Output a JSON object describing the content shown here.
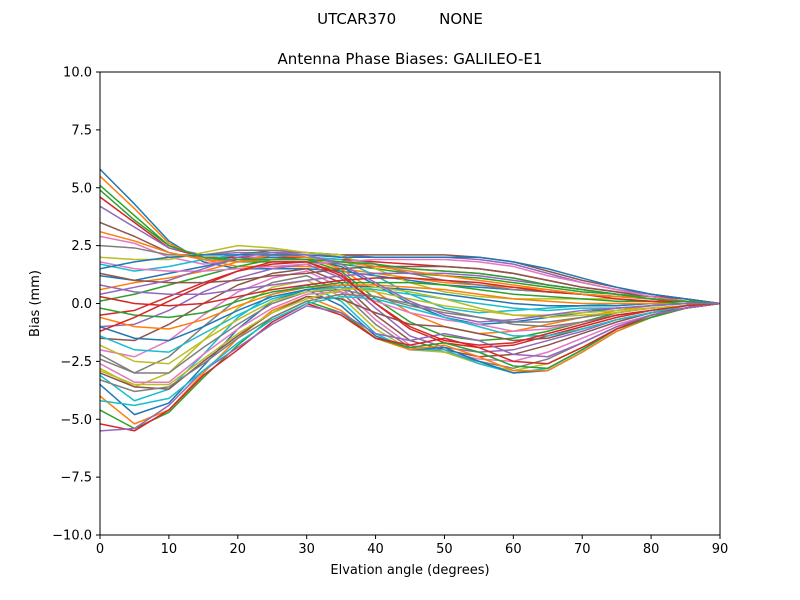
{
  "chart_data": {
    "type": "line",
    "suptitle": "UTCAR370         NONE",
    "title": "Antenna Phase Biases: GALILEO-E1",
    "xlabel": "Elvation angle (degrees)",
    "ylabel": "Bias (mm)",
    "xlim": [
      0,
      90
    ],
    "ylim": [
      -10,
      10
    ],
    "xticks": [
      "0",
      "10",
      "20",
      "30",
      "40",
      "50",
      "60",
      "70",
      "80",
      "90"
    ],
    "yticks": [
      "10.0",
      "7.5",
      "5.0",
      "2.5",
      "0.0",
      "−2.5",
      "−5.0",
      "−7.5",
      "−10.0"
    ],
    "grid": false,
    "legend": "none",
    "colors": [
      "#1f77b4",
      "#ff7f0e",
      "#2ca02c",
      "#d62728",
      "#9467bd",
      "#8c564b",
      "#e377c2",
      "#7f7f7f",
      "#bcbd22",
      "#17becf"
    ],
    "x": [
      0,
      5,
      10,
      15,
      20,
      25,
      30,
      35,
      40,
      45,
      50,
      55,
      60,
      65,
      70,
      75,
      80,
      85,
      90
    ],
    "series": [
      {
        "values": [
          5.8,
          4.3,
          2.7,
          1.8,
          1.5,
          1.5,
          1.5,
          1.4,
          1.2,
          1.0,
          0.8,
          0.7,
          0.6,
          0.5,
          0.4,
          0.3,
          0.2,
          0.1,
          0.0
        ]
      },
      {
        "values": [
          5.5,
          4.1,
          2.6,
          1.9,
          1.6,
          1.6,
          1.6,
          1.5,
          1.3,
          1.1,
          0.9,
          0.8,
          0.7,
          0.6,
          0.4,
          0.3,
          0.2,
          0.1,
          0.0
        ]
      },
      {
        "values": [
          5.1,
          3.8,
          2.5,
          2.0,
          1.8,
          1.8,
          1.8,
          1.7,
          1.5,
          1.3,
          1.2,
          1.1,
          0.9,
          0.7,
          0.5,
          0.4,
          0.3,
          0.1,
          0.0
        ]
      },
      {
        "values": [
          4.6,
          3.5,
          2.4,
          2.0,
          2.0,
          2.0,
          2.0,
          1.9,
          1.8,
          1.7,
          1.6,
          1.5,
          1.3,
          1.0,
          0.7,
          0.5,
          0.3,
          0.2,
          0.0
        ]
      },
      {
        "values": [
          4.2,
          3.3,
          2.4,
          2.1,
          2.2,
          2.2,
          2.2,
          2.1,
          2.0,
          2.0,
          2.0,
          1.9,
          1.7,
          1.3,
          0.9,
          0.6,
          0.4,
          0.2,
          0.0
        ]
      },
      {
        "values": [
          3.5,
          2.9,
          2.2,
          1.9,
          2.1,
          2.3,
          2.2,
          2.1,
          2.1,
          2.1,
          2.1,
          2.0,
          1.8,
          1.4,
          1.0,
          0.7,
          0.4,
          0.2,
          0.0
        ]
      },
      {
        "values": [
          2.9,
          2.6,
          2.0,
          1.7,
          1.9,
          2.1,
          2.0,
          1.8,
          1.6,
          1.5,
          1.4,
          1.3,
          1.1,
          0.8,
          0.6,
          0.4,
          0.2,
          0.1,
          0.0
        ]
      },
      {
        "values": [
          2.5,
          2.4,
          2.1,
          2.1,
          2.3,
          2.3,
          2.2,
          2.0,
          1.7,
          1.3,
          1.0,
          0.8,
          0.6,
          0.5,
          0.4,
          0.3,
          0.2,
          0.1,
          0.0
        ]
      },
      {
        "values": [
          2.0,
          1.9,
          1.9,
          2.2,
          2.5,
          2.4,
          2.2,
          2.1,
          1.5,
          0.9,
          0.5,
          0.3,
          0.2,
          0.2,
          0.2,
          0.2,
          0.1,
          0.1,
          0.0
        ]
      },
      {
        "values": [
          1.7,
          1.4,
          1.6,
          1.9,
          2.1,
          2.2,
          2.0,
          1.9,
          1.2,
          0.4,
          -0.2,
          -0.4,
          -0.3,
          -0.2,
          -0.1,
          0.0,
          0.0,
          0.0,
          0.0
        ]
      },
      {
        "values": [
          1.2,
          1.0,
          1.3,
          1.6,
          1.9,
          2.0,
          1.9,
          1.6,
          0.8,
          0.0,
          -0.6,
          -0.9,
          -0.8,
          -0.6,
          -0.4,
          -0.2,
          -0.1,
          0.0,
          0.0
        ]
      },
      {
        "values": [
          0.6,
          0.9,
          1.1,
          1.4,
          1.8,
          2.1,
          2.0,
          1.5,
          0.5,
          -0.4,
          -1.0,
          -1.3,
          -1.2,
          -0.9,
          -0.6,
          -0.3,
          -0.1,
          0.0,
          0.0
        ]
      },
      {
        "values": [
          0.1,
          0.4,
          0.8,
          1.2,
          1.6,
          1.9,
          1.9,
          1.4,
          0.2,
          -0.8,
          -1.4,
          -1.6,
          -1.5,
          -1.2,
          -0.8,
          -0.4,
          -0.2,
          -0.1,
          0.0
        ]
      },
      {
        "values": [
          -0.5,
          -0.3,
          0.3,
          0.9,
          1.4,
          1.7,
          1.8,
          1.3,
          0.0,
          -1.1,
          -1.7,
          -1.9,
          -1.8,
          -1.4,
          -1.0,
          -0.6,
          -0.3,
          -0.1,
          0.0
        ]
      },
      {
        "values": [
          -1.0,
          -0.9,
          -0.3,
          0.5,
          1.1,
          1.5,
          1.7,
          1.1,
          -0.2,
          -1.4,
          -1.9,
          -2.1,
          -2.0,
          -1.6,
          -1.2,
          -0.7,
          -0.4,
          -0.1,
          0.0
        ]
      },
      {
        "values": [
          -1.5,
          -1.6,
          -0.9,
          0.0,
          0.8,
          1.3,
          1.5,
          0.9,
          -0.5,
          -1.6,
          -2.0,
          -2.3,
          -2.2,
          -1.8,
          -1.3,
          -0.8,
          -0.4,
          -0.2,
          0.0
        ]
      },
      {
        "values": [
          -2.0,
          -2.3,
          -1.6,
          -0.5,
          0.5,
          1.1,
          1.4,
          0.7,
          -0.7,
          -1.8,
          -2.1,
          -2.4,
          -2.5,
          -2.1,
          -1.5,
          -0.9,
          -0.5,
          -0.2,
          0.0
        ]
      },
      {
        "values": [
          -2.4,
          -3.0,
          -2.3,
          -1.0,
          0.2,
          0.9,
          1.2,
          0.5,
          -0.9,
          -1.9,
          -2.1,
          -2.5,
          -2.8,
          -2.4,
          -1.7,
          -1.0,
          -0.5,
          -0.2,
          0.0
        ]
      },
      {
        "values": [
          -2.8,
          -3.6,
          -3.0,
          -1.6,
          -0.2,
          0.7,
          1.0,
          0.3,
          -1.1,
          -2.0,
          -2.1,
          -2.6,
          -2.9,
          -2.6,
          -1.9,
          -1.1,
          -0.6,
          -0.2,
          0.0
        ]
      },
      {
        "values": [
          -3.1,
          -4.2,
          -3.7,
          -2.2,
          -0.6,
          0.4,
          0.8,
          0.1,
          -1.3,
          -2.0,
          -2.0,
          -2.6,
          -3.0,
          -2.8,
          -2.0,
          -1.1,
          -0.6,
          -0.2,
          0.0
        ]
      },
      {
        "values": [
          -3.5,
          -4.8,
          -4.3,
          -2.7,
          -1.1,
          0.1,
          0.6,
          -0.1,
          -1.4,
          -2.0,
          -1.9,
          -2.5,
          -3.0,
          -2.9,
          -2.1,
          -1.2,
          -0.6,
          -0.2,
          0.0
        ]
      },
      {
        "values": [
          -4.0,
          -5.2,
          -4.6,
          -3.0,
          -1.5,
          -0.3,
          0.3,
          -0.3,
          -1.5,
          -2.0,
          -1.8,
          -2.3,
          -2.9,
          -2.9,
          -2.1,
          -1.2,
          -0.6,
          -0.2,
          0.0
        ]
      },
      {
        "values": [
          -4.6,
          -5.4,
          -4.7,
          -3.2,
          -1.8,
          -0.6,
          0.1,
          -0.4,
          -1.5,
          -1.9,
          -1.7,
          -2.1,
          -2.7,
          -2.8,
          -2.0,
          -1.1,
          -0.6,
          -0.2,
          0.0
        ]
      },
      {
        "values": [
          -5.2,
          -5.5,
          -4.6,
          -3.1,
          -2.0,
          -0.8,
          0.0,
          -0.5,
          -1.5,
          -1.8,
          -1.5,
          -1.9,
          -2.5,
          -2.6,
          -1.9,
          -1.1,
          -0.5,
          -0.2,
          0.0
        ]
      },
      {
        "values": [
          -5.5,
          -5.4,
          -4.4,
          -2.9,
          -1.9,
          -0.9,
          -0.1,
          -0.4,
          -1.3,
          -1.6,
          -1.3,
          -1.6,
          -2.2,
          -2.3,
          -1.7,
          -1.0,
          -0.5,
          -0.2,
          0.0
        ]
      },
      {
        "values": [
          -3.0,
          -3.6,
          -3.7,
          -2.5,
          -1.4,
          -0.4,
          0.3,
          0.2,
          -0.4,
          -0.9,
          -1.0,
          -1.3,
          -1.6,
          -1.5,
          -1.1,
          -0.7,
          -0.4,
          -0.1,
          0.0
        ]
      },
      {
        "values": [
          -2.6,
          -3.4,
          -3.4,
          -2.2,
          -1.1,
          -0.2,
          0.4,
          0.5,
          0.1,
          -0.4,
          -0.7,
          -0.9,
          -1.2,
          -1.1,
          -0.8,
          -0.5,
          -0.3,
          -0.1,
          0.0
        ]
      },
      {
        "values": [
          -2.2,
          -3.0,
          -3.0,
          -1.9,
          -0.9,
          0.0,
          0.5,
          0.6,
          0.3,
          -0.1,
          -0.4,
          -0.6,
          -0.8,
          -0.8,
          -0.6,
          -0.4,
          -0.2,
          -0.1,
          0.0
        ]
      },
      {
        "values": [
          -1.8,
          -2.5,
          -2.6,
          -1.6,
          -0.7,
          0.1,
          0.5,
          0.7,
          0.5,
          0.2,
          -0.1,
          -0.3,
          -0.5,
          -0.5,
          -0.4,
          -0.3,
          -0.2,
          -0.1,
          0.0
        ]
      },
      {
        "values": [
          -1.4,
          -2.0,
          -2.1,
          -1.3,
          -0.5,
          0.2,
          0.6,
          0.7,
          0.6,
          0.4,
          0.2,
          0.0,
          -0.2,
          -0.3,
          -0.2,
          -0.2,
          -0.1,
          0.0,
          0.0
        ]
      },
      {
        "values": [
          -1.0,
          -1.5,
          -1.6,
          -1.0,
          -0.3,
          0.3,
          0.6,
          0.8,
          0.7,
          0.6,
          0.4,
          0.2,
          0.0,
          -0.1,
          -0.1,
          -0.1,
          0.0,
          0.0,
          0.0
        ]
      },
      {
        "values": [
          -0.6,
          -1.0,
          -1.1,
          -0.7,
          -0.1,
          0.4,
          0.7,
          0.8,
          0.8,
          0.7,
          0.6,
          0.4,
          0.2,
          0.1,
          0.0,
          0.0,
          0.0,
          0.0,
          0.0
        ]
      },
      {
        "values": [
          -0.2,
          -0.5,
          -0.6,
          -0.4,
          0.1,
          0.5,
          0.7,
          0.9,
          0.9,
          0.9,
          0.8,
          0.6,
          0.4,
          0.3,
          0.2,
          0.1,
          0.1,
          0.0,
          0.0
        ]
      },
      {
        "values": [
          0.3,
          0.0,
          -0.1,
          0.0,
          0.3,
          0.6,
          0.8,
          1.0,
          1.1,
          1.1,
          1.0,
          0.9,
          0.7,
          0.5,
          0.4,
          0.2,
          0.1,
          0.1,
          0.0
        ]
      },
      {
        "values": [
          0.8,
          0.5,
          0.4,
          0.4,
          0.6,
          0.8,
          1.0,
          1.2,
          1.3,
          1.3,
          1.3,
          1.2,
          1.0,
          0.8,
          0.6,
          0.4,
          0.2,
          0.1,
          0.0
        ]
      },
      {
        "values": [
          1.3,
          1.0,
          0.9,
          0.9,
          1.0,
          1.2,
          1.3,
          1.5,
          1.6,
          1.6,
          1.6,
          1.5,
          1.3,
          1.0,
          0.7,
          0.5,
          0.3,
          0.1,
          0.0
        ]
      },
      {
        "values": [
          1.8,
          1.5,
          1.4,
          1.4,
          1.5,
          1.6,
          1.7,
          1.8,
          1.9,
          1.9,
          1.9,
          1.8,
          1.6,
          1.2,
          0.9,
          0.6,
          0.3,
          0.1,
          0.0
        ]
      },
      {
        "values": [
          -3.3,
          -3.8,
          -3.6,
          -2.6,
          -1.5,
          -0.6,
          0.1,
          0.4,
          0.3,
          0.0,
          -0.3,
          -0.6,
          -0.9,
          -1.0,
          -0.8,
          -0.5,
          -0.3,
          -0.1,
          0.0
        ]
      },
      {
        "values": [
          -2.9,
          -3.5,
          -3.5,
          -2.4,
          -1.3,
          -0.4,
          0.2,
          0.6,
          0.7,
          0.5,
          0.2,
          -0.2,
          -0.5,
          -0.6,
          -0.5,
          -0.4,
          -0.2,
          -0.1,
          0.0
        ]
      },
      {
        "values": [
          -4.2,
          -4.4,
          -4.1,
          -2.9,
          -1.7,
          -0.7,
          0.0,
          0.3,
          0.2,
          -0.2,
          -0.6,
          -1.0,
          -1.4,
          -1.4,
          -1.1,
          -0.7,
          -0.4,
          -0.1,
          0.0
        ]
      },
      {
        "values": [
          1.5,
          1.8,
          2.0,
          2.1,
          2.1,
          2.1,
          2.1,
          2.0,
          2.0,
          2.0,
          2.0,
          2.0,
          1.8,
          1.5,
          1.1,
          0.7,
          0.4,
          0.2,
          0.0
        ]
      },
      {
        "values": [
          3.1,
          2.7,
          2.2,
          1.9,
          1.8,
          1.9,
          1.9,
          1.8,
          1.6,
          1.4,
          1.2,
          1.0,
          0.8,
          0.6,
          0.4,
          0.3,
          0.2,
          0.1,
          0.0
        ]
      },
      {
        "values": [
          4.9,
          3.6,
          2.5,
          2.0,
          1.9,
          1.9,
          1.9,
          1.8,
          1.7,
          1.5,
          1.4,
          1.3,
          1.1,
          0.8,
          0.6,
          0.4,
          0.2,
          0.1,
          0.0
        ]
      },
      {
        "values": [
          -1.2,
          -0.6,
          0.1,
          0.8,
          1.4,
          1.8,
          1.8,
          1.2,
          0.0,
          -1.0,
          -1.6,
          -1.8,
          -1.7,
          -1.3,
          -0.9,
          -0.5,
          -0.3,
          -0.1,
          0.0
        ]
      },
      {
        "values": [
          0.4,
          0.7,
          1.0,
          1.5,
          2.0,
          2.2,
          2.1,
          1.7,
          0.9,
          0.1,
          -0.5,
          -0.8,
          -0.7,
          -0.5,
          -0.3,
          -0.2,
          -0.1,
          0.0,
          0.0
        ]
      }
    ]
  }
}
